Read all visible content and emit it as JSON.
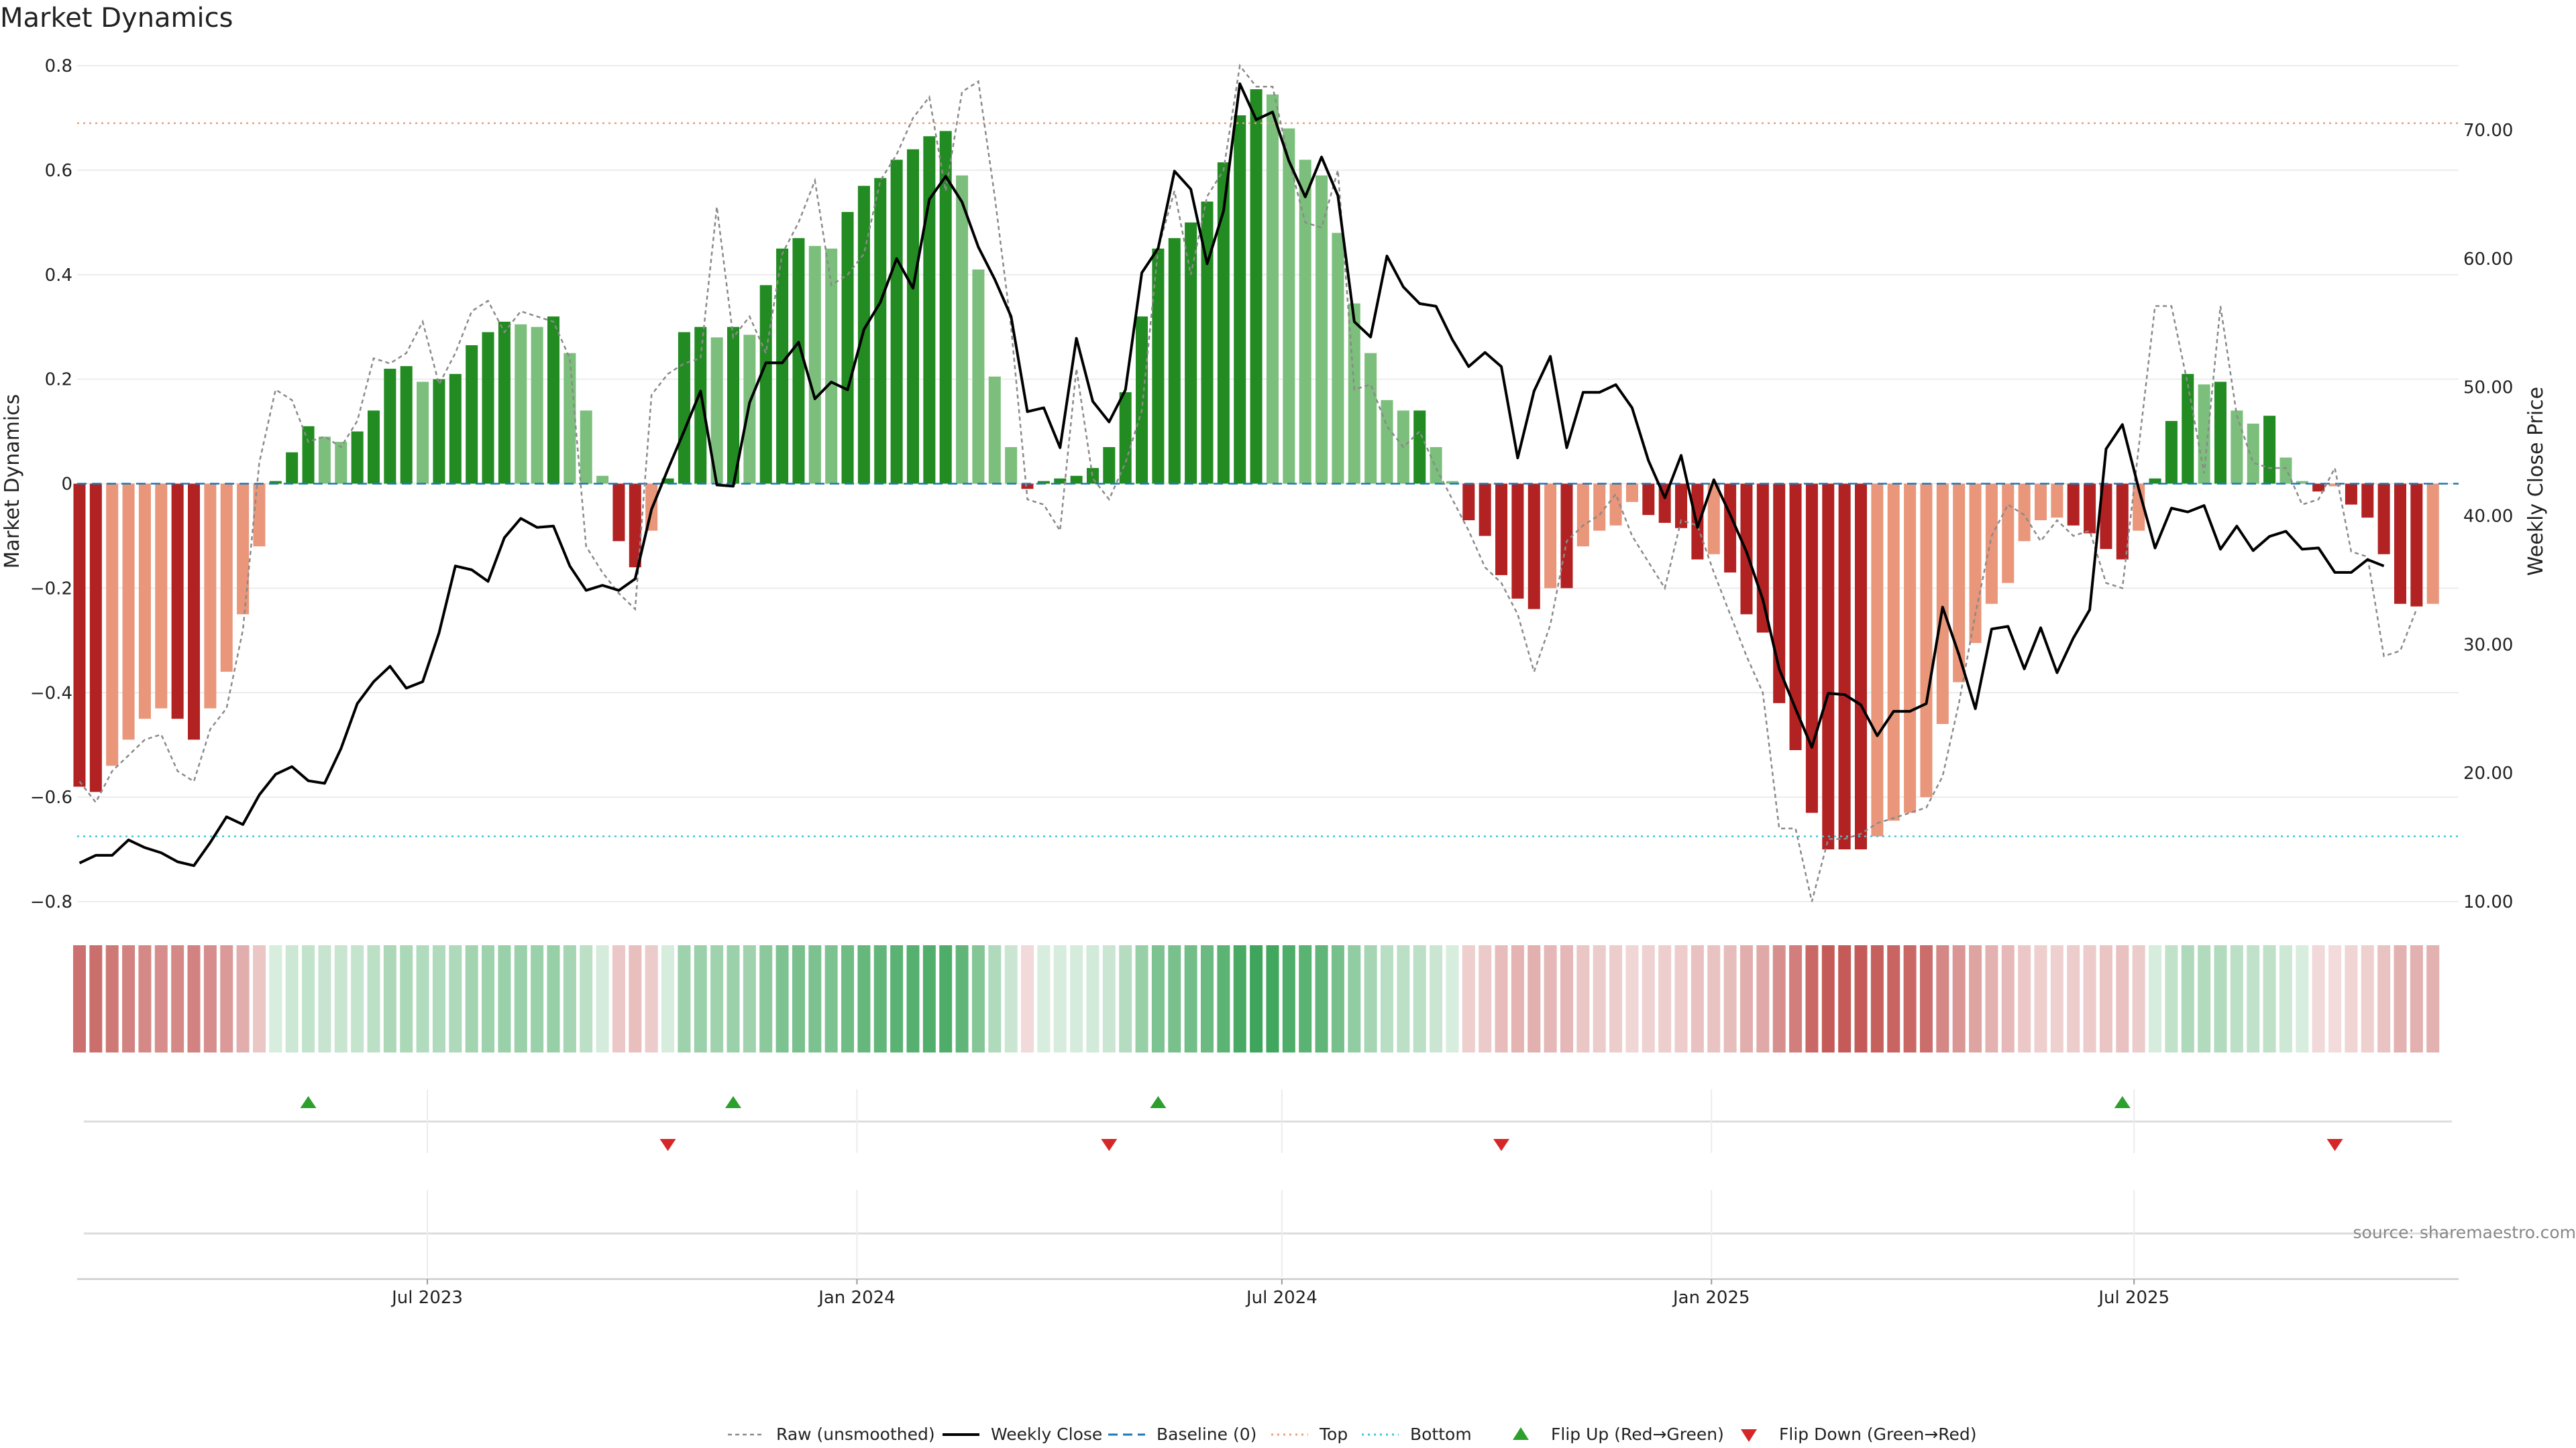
{
  "chart_data": {
    "type": "bar",
    "title": "Market Dynamics",
    "ylabel_left": "Market Dynamics",
    "ylabel_right": "Weekly Close Price",
    "source": "source: sharemaestro.com",
    "ylim_left": [
      -0.8,
      0.8
    ],
    "ylim_right": [
      10,
      75
    ],
    "yticks_left": [
      "0.8",
      "0.6",
      "0.4",
      "0.2",
      "0",
      "−0.2",
      "−0.4",
      "−0.6",
      "−0.8"
    ],
    "yticks_right": [
      "70.00",
      "60.00",
      "50.00",
      "40.00",
      "30.00",
      "20.00",
      "10.00"
    ],
    "x_start": "2023-02-01",
    "x_end": "2025-11-17",
    "weekly_start": "2023-02-02",
    "xticks": [
      {
        "date": "2023-07-01",
        "label": "Jul 2023"
      },
      {
        "date": "2024-01-01",
        "label": "Jan 2024"
      },
      {
        "date": "2024-07-01",
        "label": "Jul 2024"
      },
      {
        "date": "2025-01-01",
        "label": "Jan 2025"
      },
      {
        "date": "2025-07-01",
        "label": "Jul 2025"
      }
    ],
    "top_level": 0.69,
    "bottom_level": -0.675,
    "bars": [
      -0.58,
      -0.59,
      -0.54,
      -0.49,
      -0.45,
      -0.43,
      -0.45,
      -0.49,
      -0.43,
      -0.36,
      -0.25,
      -0.12,
      0.005,
      0.06,
      0.11,
      0.09,
      0.08,
      0.1,
      0.14,
      0.22,
      0.225,
      0.195,
      0.2,
      0.21,
      0.265,
      0.29,
      0.31,
      0.305,
      0.3,
      0.32,
      0.25,
      0.14,
      0.015,
      -0.11,
      -0.16,
      -0.09,
      0.01,
      0.29,
      0.3,
      0.28,
      0.3,
      0.285,
      0.38,
      0.45,
      0.47,
      0.455,
      0.45,
      0.52,
      0.57,
      0.585,
      0.62,
      0.64,
      0.665,
      0.675,
      0.59,
      0.41,
      0.205,
      0.07,
      -0.01,
      0.005,
      0.01,
      0.015,
      0.03,
      0.07,
      0.175,
      0.32,
      0.45,
      0.47,
      0.5,
      0.54,
      0.615,
      0.705,
      0.755,
      0.745,
      0.68,
      0.62,
      0.59,
      0.48,
      0.345,
      0.25,
      0.16,
      0.14,
      0.14,
      0.07,
      0.005,
      -0.07,
      -0.1,
      -0.175,
      -0.22,
      -0.24,
      -0.2,
      -0.2,
      -0.12,
      -0.09,
      -0.08,
      -0.035,
      -0.06,
      -0.075,
      -0.085,
      -0.145,
      -0.135,
      -0.17,
      -0.25,
      -0.285,
      -0.42,
      -0.51,
      -0.63,
      -0.7,
      -0.7,
      -0.7,
      -0.675,
      -0.645,
      -0.63,
      -0.6,
      -0.46,
      -0.38,
      -0.305,
      -0.23,
      -0.19,
      -0.11,
      -0.07,
      -0.065,
      -0.08,
      -0.095,
      -0.125,
      -0.145,
      -0.09,
      0.01,
      0.12,
      0.21,
      0.19,
      0.195,
      0.14,
      0.115,
      0.13,
      0.05,
      0.005,
      -0.015,
      -0.005,
      -0.04,
      -0.065,
      -0.135,
      -0.23,
      -0.235,
      -0.23
    ],
    "raw": [
      -0.57,
      -0.61,
      -0.55,
      -0.52,
      -0.49,
      -0.48,
      -0.55,
      -0.57,
      -0.47,
      -0.43,
      -0.28,
      0.04,
      0.18,
      0.16,
      0.08,
      0.09,
      0.07,
      0.12,
      0.24,
      0.23,
      0.25,
      0.31,
      0.19,
      0.25,
      0.33,
      0.35,
      0.29,
      0.33,
      0.32,
      0.31,
      0.24,
      -0.12,
      -0.17,
      -0.21,
      -0.24,
      0.17,
      0.21,
      0.23,
      0.24,
      0.53,
      0.28,
      0.32,
      0.25,
      0.44,
      0.5,
      0.58,
      0.38,
      0.4,
      0.44,
      0.58,
      0.63,
      0.7,
      0.74,
      0.56,
      0.75,
      0.77,
      0.55,
      0.3,
      -0.03,
      -0.04,
      -0.09,
      0.22,
      0.01,
      -0.03,
      0.04,
      0.14,
      0.45,
      0.56,
      0.4,
      0.55,
      0.6,
      0.8,
      0.76,
      0.76,
      0.62,
      0.5,
      0.49,
      0.6,
      0.18,
      0.19,
      0.11,
      0.07,
      0.1,
      0.03,
      -0.03,
      -0.09,
      -0.16,
      -0.19,
      -0.25,
      -0.36,
      -0.27,
      -0.11,
      -0.08,
      -0.06,
      -0.02,
      -0.1,
      -0.15,
      -0.2,
      -0.07,
      -0.08,
      -0.17,
      -0.25,
      -0.33,
      -0.4,
      -0.66,
      -0.66,
      -0.8,
      -0.68,
      -0.68,
      -0.67,
      -0.65,
      -0.64,
      -0.63,
      -0.62,
      -0.56,
      -0.42,
      -0.25,
      -0.1,
      -0.04,
      -0.06,
      -0.11,
      -0.07,
      -0.1,
      -0.09,
      -0.19,
      -0.2,
      0.07,
      0.34,
      0.34,
      0.19,
      0.02,
      0.34,
      0.13,
      0.04,
      0.03,
      0.03,
      -0.04,
      -0.03,
      0.03,
      -0.13,
      -0.14,
      -0.33,
      -0.32,
      -0.24
    ],
    "close": [
      13.0,
      13.6,
      13.6,
      14.8,
      14.2,
      13.8,
      13.1,
      12.8,
      14.6,
      16.6,
      16.0,
      18.3,
      19.9,
      20.5,
      19.4,
      19.2,
      21.9,
      25.4,
      27.1,
      28.3,
      26.6,
      27.1,
      30.9,
      36.1,
      35.8,
      34.9,
      38.3,
      39.8,
      39.1,
      39.2,
      36.1,
      34.2,
      34.6,
      34.2,
      35.1,
      40.5,
      43.6,
      46.6,
      49.7,
      42.4,
      42.3,
      48.8,
      51.9,
      51.9,
      53.5,
      49.1,
      50.4,
      49.8,
      54.5,
      56.6,
      60.0,
      57.7,
      64.6,
      66.4,
      64.4,
      60.9,
      58.4,
      55.5,
      48.1,
      48.4,
      45.3,
      53.8,
      48.9,
      47.3,
      49.8,
      58.9,
      60.8,
      66.8,
      65.4,
      59.6,
      63.7,
      73.6,
      70.8,
      71.4,
      67.6,
      64.8,
      67.9,
      64.9,
      55.1,
      53.9,
      60.2,
      57.8,
      56.5,
      56.3,
      53.7,
      51.6,
      52.7,
      51.6,
      44.5,
      49.7,
      52.4,
      45.3,
      49.6,
      49.6,
      50.2,
      48.4,
      44.3,
      41.4,
      44.7,
      39.1,
      42.8,
      40.1,
      37.2,
      33.5,
      28.1,
      25.0,
      22.0,
      26.2,
      26.1,
      25.3,
      22.9,
      24.8,
      24.8,
      25.4,
      32.9,
      29.2,
      25.0,
      31.2,
      31.4,
      28.1,
      31.3,
      27.8,
      30.5,
      32.7,
      45.2,
      47.1,
      42.1,
      37.5,
      40.6,
      40.3,
      40.8,
      37.4,
      39.2,
      37.3,
      38.4,
      38.8,
      37.4,
      37.5,
      35.6,
      35.6,
      36.6,
      36.1
    ],
    "flip_up": [
      "2023-05-11",
      "2023-11-09",
      "2024-05-09",
      "2025-06-26"
    ],
    "flip_down": [
      "2023-10-12",
      "2024-04-18",
      "2024-10-03",
      "2025-09-25"
    ],
    "series": [
      {
        "name": "Raw (unsmoothed)",
        "color": "#8a8a8a"
      },
      {
        "name": "Weekly Close",
        "color": "#000000"
      },
      {
        "name": "Baseline (0)",
        "color": "#1f77b4"
      },
      {
        "name": "Top",
        "color": "#e8a07a"
      },
      {
        "name": "Bottom",
        "color": "#3ec8d4"
      },
      {
        "name": "Flip Up (Red→Green)",
        "color": "#2ca02c"
      },
      {
        "name": "Flip Down (Green→Red)",
        "color": "#d62728"
      }
    ],
    "colors": {
      "green_strong": "#228b22",
      "green_light": "#7cbf7c",
      "red_strong": "#b22222",
      "red_light": "#e9967a"
    },
    "legend_position": "bottom"
  }
}
